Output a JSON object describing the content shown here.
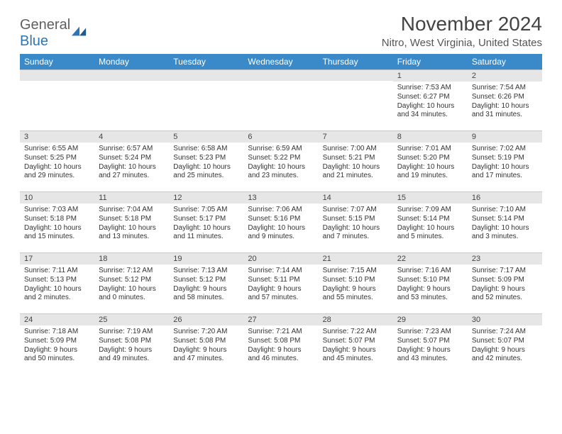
{
  "brand": {
    "general": "General",
    "blue": "Blue"
  },
  "title": "November 2024",
  "location": "Nitro, West Virginia, United States",
  "colors": {
    "header_bg": "#3a8ac9",
    "header_text": "#ffffff",
    "daynum_bg": "#e6e6e6",
    "text": "#333333",
    "logo_blue": "#2e75b6",
    "logo_gray": "#5f5f5f"
  },
  "dayNames": [
    "Sunday",
    "Monday",
    "Tuesday",
    "Wednesday",
    "Thursday",
    "Friday",
    "Saturday"
  ],
  "weeks": [
    [
      {
        "n": "",
        "sunrise": "",
        "sunset": "",
        "daylight": ""
      },
      {
        "n": "",
        "sunrise": "",
        "sunset": "",
        "daylight": ""
      },
      {
        "n": "",
        "sunrise": "",
        "sunset": "",
        "daylight": ""
      },
      {
        "n": "",
        "sunrise": "",
        "sunset": "",
        "daylight": ""
      },
      {
        "n": "",
        "sunrise": "",
        "sunset": "",
        "daylight": ""
      },
      {
        "n": "1",
        "sunrise": "Sunrise: 7:53 AM",
        "sunset": "Sunset: 6:27 PM",
        "daylight": "Daylight: 10 hours and 34 minutes."
      },
      {
        "n": "2",
        "sunrise": "Sunrise: 7:54 AM",
        "sunset": "Sunset: 6:26 PM",
        "daylight": "Daylight: 10 hours and 31 minutes."
      }
    ],
    [
      {
        "n": "3",
        "sunrise": "Sunrise: 6:55 AM",
        "sunset": "Sunset: 5:25 PM",
        "daylight": "Daylight: 10 hours and 29 minutes."
      },
      {
        "n": "4",
        "sunrise": "Sunrise: 6:57 AM",
        "sunset": "Sunset: 5:24 PM",
        "daylight": "Daylight: 10 hours and 27 minutes."
      },
      {
        "n": "5",
        "sunrise": "Sunrise: 6:58 AM",
        "sunset": "Sunset: 5:23 PM",
        "daylight": "Daylight: 10 hours and 25 minutes."
      },
      {
        "n": "6",
        "sunrise": "Sunrise: 6:59 AM",
        "sunset": "Sunset: 5:22 PM",
        "daylight": "Daylight: 10 hours and 23 minutes."
      },
      {
        "n": "7",
        "sunrise": "Sunrise: 7:00 AM",
        "sunset": "Sunset: 5:21 PM",
        "daylight": "Daylight: 10 hours and 21 minutes."
      },
      {
        "n": "8",
        "sunrise": "Sunrise: 7:01 AM",
        "sunset": "Sunset: 5:20 PM",
        "daylight": "Daylight: 10 hours and 19 minutes."
      },
      {
        "n": "9",
        "sunrise": "Sunrise: 7:02 AM",
        "sunset": "Sunset: 5:19 PM",
        "daylight": "Daylight: 10 hours and 17 minutes."
      }
    ],
    [
      {
        "n": "10",
        "sunrise": "Sunrise: 7:03 AM",
        "sunset": "Sunset: 5:18 PM",
        "daylight": "Daylight: 10 hours and 15 minutes."
      },
      {
        "n": "11",
        "sunrise": "Sunrise: 7:04 AM",
        "sunset": "Sunset: 5:18 PM",
        "daylight": "Daylight: 10 hours and 13 minutes."
      },
      {
        "n": "12",
        "sunrise": "Sunrise: 7:05 AM",
        "sunset": "Sunset: 5:17 PM",
        "daylight": "Daylight: 10 hours and 11 minutes."
      },
      {
        "n": "13",
        "sunrise": "Sunrise: 7:06 AM",
        "sunset": "Sunset: 5:16 PM",
        "daylight": "Daylight: 10 hours and 9 minutes."
      },
      {
        "n": "14",
        "sunrise": "Sunrise: 7:07 AM",
        "sunset": "Sunset: 5:15 PM",
        "daylight": "Daylight: 10 hours and 7 minutes."
      },
      {
        "n": "15",
        "sunrise": "Sunrise: 7:09 AM",
        "sunset": "Sunset: 5:14 PM",
        "daylight": "Daylight: 10 hours and 5 minutes."
      },
      {
        "n": "16",
        "sunrise": "Sunrise: 7:10 AM",
        "sunset": "Sunset: 5:14 PM",
        "daylight": "Daylight: 10 hours and 3 minutes."
      }
    ],
    [
      {
        "n": "17",
        "sunrise": "Sunrise: 7:11 AM",
        "sunset": "Sunset: 5:13 PM",
        "daylight": "Daylight: 10 hours and 2 minutes."
      },
      {
        "n": "18",
        "sunrise": "Sunrise: 7:12 AM",
        "sunset": "Sunset: 5:12 PM",
        "daylight": "Daylight: 10 hours and 0 minutes."
      },
      {
        "n": "19",
        "sunrise": "Sunrise: 7:13 AM",
        "sunset": "Sunset: 5:12 PM",
        "daylight": "Daylight: 9 hours and 58 minutes."
      },
      {
        "n": "20",
        "sunrise": "Sunrise: 7:14 AM",
        "sunset": "Sunset: 5:11 PM",
        "daylight": "Daylight: 9 hours and 57 minutes."
      },
      {
        "n": "21",
        "sunrise": "Sunrise: 7:15 AM",
        "sunset": "Sunset: 5:10 PM",
        "daylight": "Daylight: 9 hours and 55 minutes."
      },
      {
        "n": "22",
        "sunrise": "Sunrise: 7:16 AM",
        "sunset": "Sunset: 5:10 PM",
        "daylight": "Daylight: 9 hours and 53 minutes."
      },
      {
        "n": "23",
        "sunrise": "Sunrise: 7:17 AM",
        "sunset": "Sunset: 5:09 PM",
        "daylight": "Daylight: 9 hours and 52 minutes."
      }
    ],
    [
      {
        "n": "24",
        "sunrise": "Sunrise: 7:18 AM",
        "sunset": "Sunset: 5:09 PM",
        "daylight": "Daylight: 9 hours and 50 minutes."
      },
      {
        "n": "25",
        "sunrise": "Sunrise: 7:19 AM",
        "sunset": "Sunset: 5:08 PM",
        "daylight": "Daylight: 9 hours and 49 minutes."
      },
      {
        "n": "26",
        "sunrise": "Sunrise: 7:20 AM",
        "sunset": "Sunset: 5:08 PM",
        "daylight": "Daylight: 9 hours and 47 minutes."
      },
      {
        "n": "27",
        "sunrise": "Sunrise: 7:21 AM",
        "sunset": "Sunset: 5:08 PM",
        "daylight": "Daylight: 9 hours and 46 minutes."
      },
      {
        "n": "28",
        "sunrise": "Sunrise: 7:22 AM",
        "sunset": "Sunset: 5:07 PM",
        "daylight": "Daylight: 9 hours and 45 minutes."
      },
      {
        "n": "29",
        "sunrise": "Sunrise: 7:23 AM",
        "sunset": "Sunset: 5:07 PM",
        "daylight": "Daylight: 9 hours and 43 minutes."
      },
      {
        "n": "30",
        "sunrise": "Sunrise: 7:24 AM",
        "sunset": "Sunset: 5:07 PM",
        "daylight": "Daylight: 9 hours and 42 minutes."
      }
    ]
  ]
}
